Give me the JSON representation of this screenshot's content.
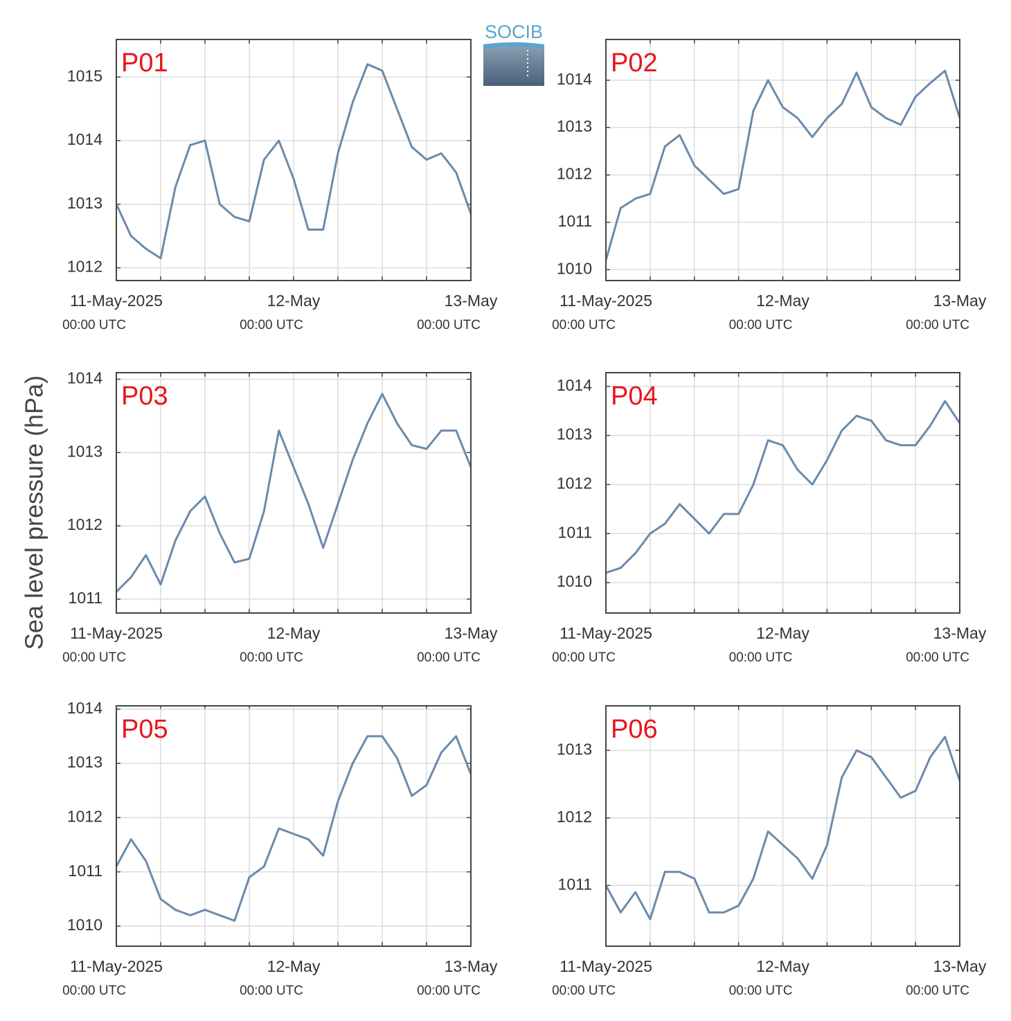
{
  "ylabel": "Sea level pressure (hPa)",
  "logo": "SOCIB",
  "chart_data": [
    {
      "type": "line",
      "label": "P01",
      "x": [
        0,
        2,
        4,
        6,
        8,
        10,
        12,
        14,
        16,
        18,
        20,
        22,
        24,
        26,
        28,
        30,
        32,
        34,
        36,
        38,
        40,
        42,
        44,
        46,
        48
      ],
      "series": [
        {
          "color": "#6a8aab",
          "values": [
            1013.0,
            1012.5,
            1012.3,
            1012.15,
            1013.27,
            1013.93,
            1014.0,
            1013.0,
            1012.8,
            1012.73,
            1013.7,
            1014.0,
            1013.4,
            1012.6,
            1012.6,
            1013.8,
            1014.6,
            1015.2,
            1015.1,
            1014.5,
            1013.9,
            1013.7,
            1013.8,
            1013.5,
            1012.85
          ]
        }
      ],
      "xlim": [
        0,
        48
      ],
      "xticks": [
        {
          "value": 0,
          "label": "11-May-2025",
          "sublabel": "00:00 UTC"
        },
        {
          "value": 24,
          "label": "12-May",
          "sublabel": "00:00 UTC"
        },
        {
          "value": 48,
          "label": "13-May",
          "sublabel": "00:00 UTC"
        }
      ],
      "xminor": [
        6,
        12,
        18,
        30,
        36,
        42
      ],
      "ylim": [
        1011.8,
        1015.59
      ],
      "yticks": [
        1012,
        1013,
        1014,
        1015
      ],
      "grid": true
    },
    {
      "type": "line",
      "label": "P02",
      "x": [
        0,
        2,
        4,
        6,
        8,
        10,
        12,
        14,
        16,
        18,
        20,
        22,
        24,
        26,
        28,
        30,
        32,
        34,
        36,
        38,
        40,
        42,
        44,
        46,
        48
      ],
      "series": [
        {
          "color": "#6a8aab",
          "values": [
            1010.2,
            1011.3,
            1011.5,
            1011.6,
            1012.6,
            1012.84,
            1012.2,
            1011.9,
            1011.6,
            1011.7,
            1013.35,
            1014.0,
            1013.43,
            1013.2,
            1012.8,
            1013.2,
            1013.5,
            1014.16,
            1013.43,
            1013.2,
            1013.06,
            1013.65,
            1013.94,
            1014.2,
            1013.2
          ]
        }
      ],
      "xlim": [
        0,
        48
      ],
      "xticks": [
        {
          "value": 0,
          "label": "11-May-2025",
          "sublabel": "00:00 UTC"
        },
        {
          "value": 24,
          "label": "12-May",
          "sublabel": "00:00 UTC"
        },
        {
          "value": 48,
          "label": "13-May",
          "sublabel": "00:00 UTC"
        }
      ],
      "xminor": [
        6,
        12,
        18,
        30,
        36,
        42
      ],
      "ylim": [
        1009.77,
        1014.86
      ],
      "yticks": [
        1010,
        1011,
        1012,
        1013,
        1014
      ],
      "grid": true
    },
    {
      "type": "line",
      "label": "P03",
      "x": [
        0,
        2,
        4,
        6,
        8,
        10,
        12,
        14,
        16,
        18,
        20,
        22,
        24,
        26,
        28,
        30,
        32,
        34,
        36,
        38,
        40,
        42,
        44,
        46,
        48
      ],
      "series": [
        {
          "color": "#6a8aab",
          "values": [
            1011.1,
            1011.3,
            1011.6,
            1011.2,
            1011.8,
            1012.2,
            1012.4,
            1011.9,
            1011.5,
            1011.55,
            1012.2,
            1013.3,
            1012.8,
            1012.3,
            1011.7,
            1012.3,
            1012.9,
            1013.4,
            1013.8,
            1013.4,
            1013.1,
            1013.05,
            1013.3,
            1013.3,
            1012.8
          ]
        }
      ],
      "xlim": [
        0,
        48
      ],
      "xticks": [
        {
          "value": 0,
          "label": "11-May-2025",
          "sublabel": "00:00 UTC"
        },
        {
          "value": 24,
          "label": "12-May",
          "sublabel": "00:00 UTC"
        },
        {
          "value": 48,
          "label": "13-May",
          "sublabel": "00:00 UTC"
        }
      ],
      "xminor": [
        6,
        12,
        18,
        30,
        36,
        42
      ],
      "ylim": [
        1010.81,
        1014.09
      ],
      "yticks": [
        1011,
        1012,
        1013,
        1014
      ],
      "grid": true
    },
    {
      "type": "line",
      "label": "P04",
      "x": [
        0,
        2,
        4,
        6,
        8,
        10,
        12,
        14,
        16,
        18,
        20,
        22,
        24,
        26,
        28,
        30,
        32,
        34,
        36,
        38,
        40,
        42,
        44,
        46,
        48
      ],
      "series": [
        {
          "color": "#6a8aab",
          "values": [
            1010.2,
            1010.3,
            1010.6,
            1011.0,
            1011.2,
            1011.6,
            1011.3,
            1011.0,
            1011.4,
            1011.4,
            1012.0,
            1012.9,
            1012.8,
            1012.3,
            1012.0,
            1012.5,
            1013.1,
            1013.4,
            1013.3,
            1012.9,
            1012.8,
            1012.8,
            1013.2,
            1013.7,
            1013.25
          ]
        }
      ],
      "xlim": [
        0,
        48
      ],
      "xticks": [
        {
          "value": 0,
          "label": "11-May-2025",
          "sublabel": "00:00 UTC"
        },
        {
          "value": 24,
          "label": "12-May",
          "sublabel": "00:00 UTC"
        },
        {
          "value": 48,
          "label": "13-May",
          "sublabel": "00:00 UTC"
        }
      ],
      "xminor": [
        6,
        12,
        18,
        30,
        36,
        42
      ],
      "ylim": [
        1009.38,
        1014.28
      ],
      "yticks": [
        1010,
        1011,
        1012,
        1013,
        1014
      ],
      "grid": true
    },
    {
      "type": "line",
      "label": "P05",
      "x": [
        0,
        2,
        4,
        6,
        8,
        10,
        12,
        14,
        16,
        18,
        20,
        22,
        24,
        26,
        28,
        30,
        32,
        34,
        36,
        38,
        40,
        42,
        44,
        46,
        48
      ],
      "series": [
        {
          "color": "#6a8aab",
          "values": [
            1011.1,
            1011.6,
            1011.2,
            1010.5,
            1010.3,
            1010.2,
            1010.3,
            1010.2,
            1010.1,
            1010.9,
            1011.1,
            1011.8,
            1011.7,
            1011.6,
            1011.3,
            1012.3,
            1013.0,
            1013.5,
            1013.5,
            1013.1,
            1012.4,
            1012.6,
            1013.2,
            1013.5,
            1012.8
          ]
        }
      ],
      "xlim": [
        0,
        48
      ],
      "xticks": [
        {
          "value": 0,
          "label": "11-May-2025",
          "sublabel": "00:00 UTC"
        },
        {
          "value": 24,
          "label": "12-May",
          "sublabel": "00:00 UTC"
        },
        {
          "value": 48,
          "label": "13-May",
          "sublabel": "00:00 UTC"
        }
      ],
      "xminor": [
        6,
        12,
        18,
        30,
        36,
        42
      ],
      "ylim": [
        1009.63,
        1014.06
      ],
      "yticks": [
        1010,
        1011,
        1012,
        1013,
        1014
      ],
      "grid": true
    },
    {
      "type": "line",
      "label": "P06",
      "x": [
        0,
        2,
        4,
        6,
        8,
        10,
        12,
        14,
        16,
        18,
        20,
        22,
        24,
        26,
        28,
        30,
        32,
        34,
        36,
        38,
        40,
        42,
        44,
        46,
        48
      ],
      "series": [
        {
          "color": "#6a8aab",
          "values": [
            1011.0,
            1010.6,
            1010.9,
            1010.5,
            1011.2,
            1011.2,
            1011.1,
            1010.6,
            1010.6,
            1010.7,
            1011.1,
            1011.8,
            1011.6,
            1011.4,
            1011.1,
            1011.6,
            1012.6,
            1013.0,
            1012.9,
            1012.6,
            1012.3,
            1012.4,
            1012.9,
            1013.2,
            1012.55
          ]
        }
      ],
      "xlim": [
        0,
        48
      ],
      "xticks": [
        {
          "value": 0,
          "label": "11-May-2025",
          "sublabel": "00:00 UTC"
        },
        {
          "value": 24,
          "label": "12-May",
          "sublabel": "00:00 UTC"
        },
        {
          "value": 48,
          "label": "13-May",
          "sublabel": "00:00 UTC"
        }
      ],
      "xminor": [
        6,
        12,
        18,
        30,
        36,
        42
      ],
      "ylim": [
        1010.1,
        1013.66
      ],
      "yticks": [
        1011,
        1012,
        1013
      ],
      "grid": true
    }
  ]
}
